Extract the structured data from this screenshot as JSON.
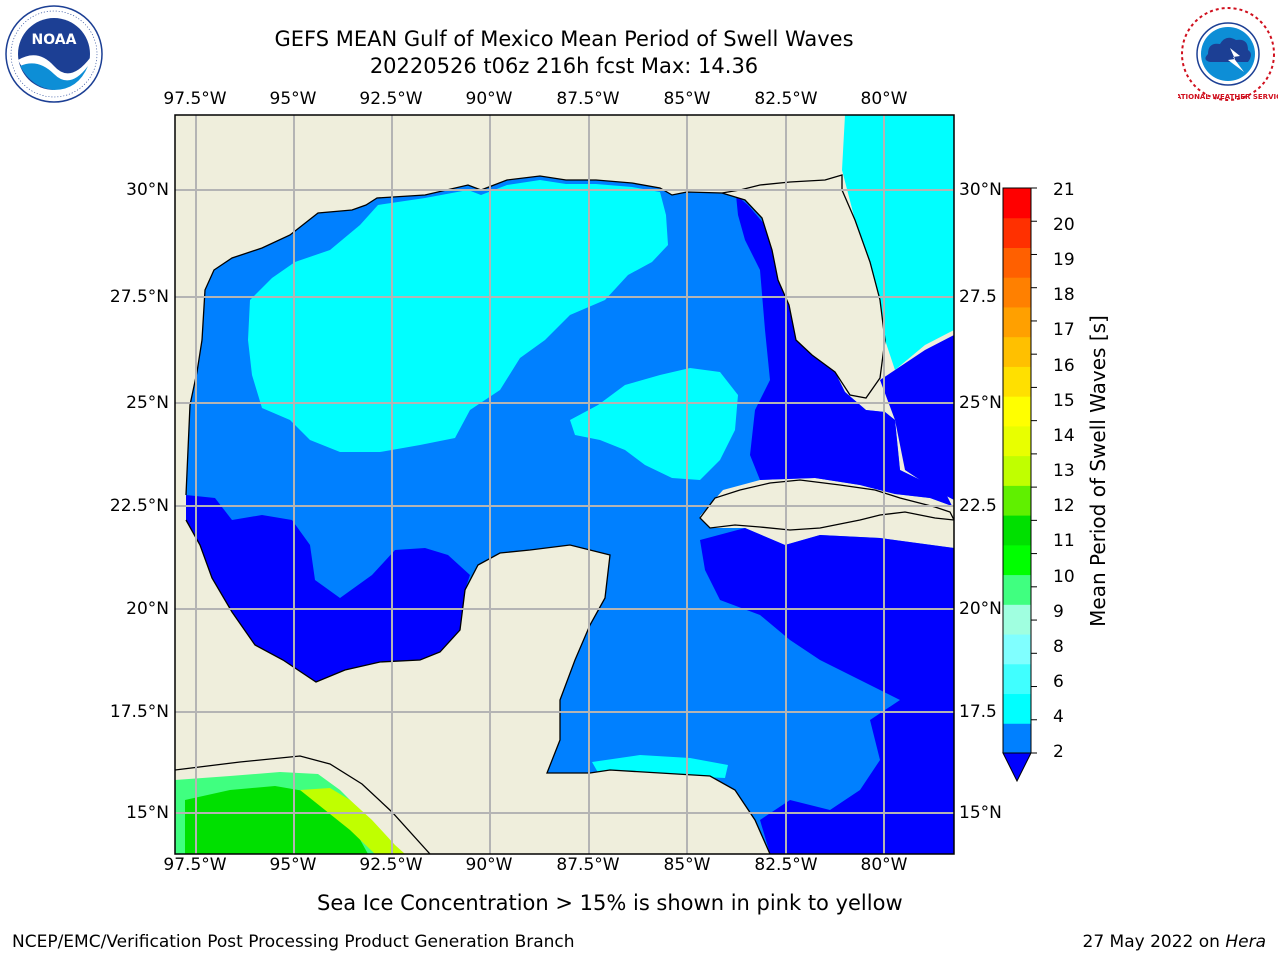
{
  "header": {
    "title_line1": "GEFS MEAN Gulf of Mexico Mean Period of Swell Waves",
    "title_line2": "20220526 t06z 216h fcst   Max: 14.36"
  },
  "logos": {
    "left": "NOAA",
    "left_ring": "NATIONAL OCEANIC AND ATMOSPHERIC ADMINISTRATION · U.S. DEPARTMENT OF COMMERCE",
    "right_ring": "NATIONAL WEATHER SERVICE"
  },
  "map": {
    "x_ticks": [
      "97.5°W",
      "95°W",
      "92.5°W",
      "90°W",
      "87.5°W",
      "85°W",
      "82.5°W",
      "80°W"
    ],
    "y_ticks_left": [
      "30°N",
      "27.5°N",
      "25°N",
      "22.5°N",
      "20°N",
      "17.5°N",
      "15°N"
    ],
    "y_ticks_right": [
      "30°N",
      "27.5",
      "25°N",
      "22.5",
      "20°N",
      "17.5",
      "15°N"
    ],
    "colors": {
      "land": "#efeedc",
      "ocean_2_4": "#0080ff",
      "ocean_4_6": "#00ffff",
      "lt_2": "#0000ff",
      "grid": "#b4b4b4"
    }
  },
  "colorbar": {
    "label": "Mean Period of Swell Waves [s]",
    "ticks": [
      "21",
      "20",
      "19",
      "18",
      "17",
      "16",
      "15",
      "14",
      "13",
      "12",
      "11",
      "10",
      "9",
      "8",
      "6",
      "4",
      "2"
    ],
    "colors_bottom_to_top": [
      "#0080ff",
      "#00ffff",
      "#40ffff",
      "#80ffff",
      "#a0ffe0",
      "#40ff80",
      "#00ff00",
      "#00e000",
      "#60f000",
      "#c0ff00",
      "#e8ff00",
      "#ffff00",
      "#ffe000",
      "#ffc000",
      "#ffa000",
      "#ff8000",
      "#ff6000",
      "#ff3000",
      "#ff0000"
    ],
    "extend_color": "#0000ff"
  },
  "footer": {
    "note": "Sea Ice Concentration > 15% is shown in pink to yellow",
    "left": "NCEP/EMC/Verification Post Processing Product Generation Branch",
    "right_date": "27 May 2022 on ",
    "right_host": "Hera"
  }
}
